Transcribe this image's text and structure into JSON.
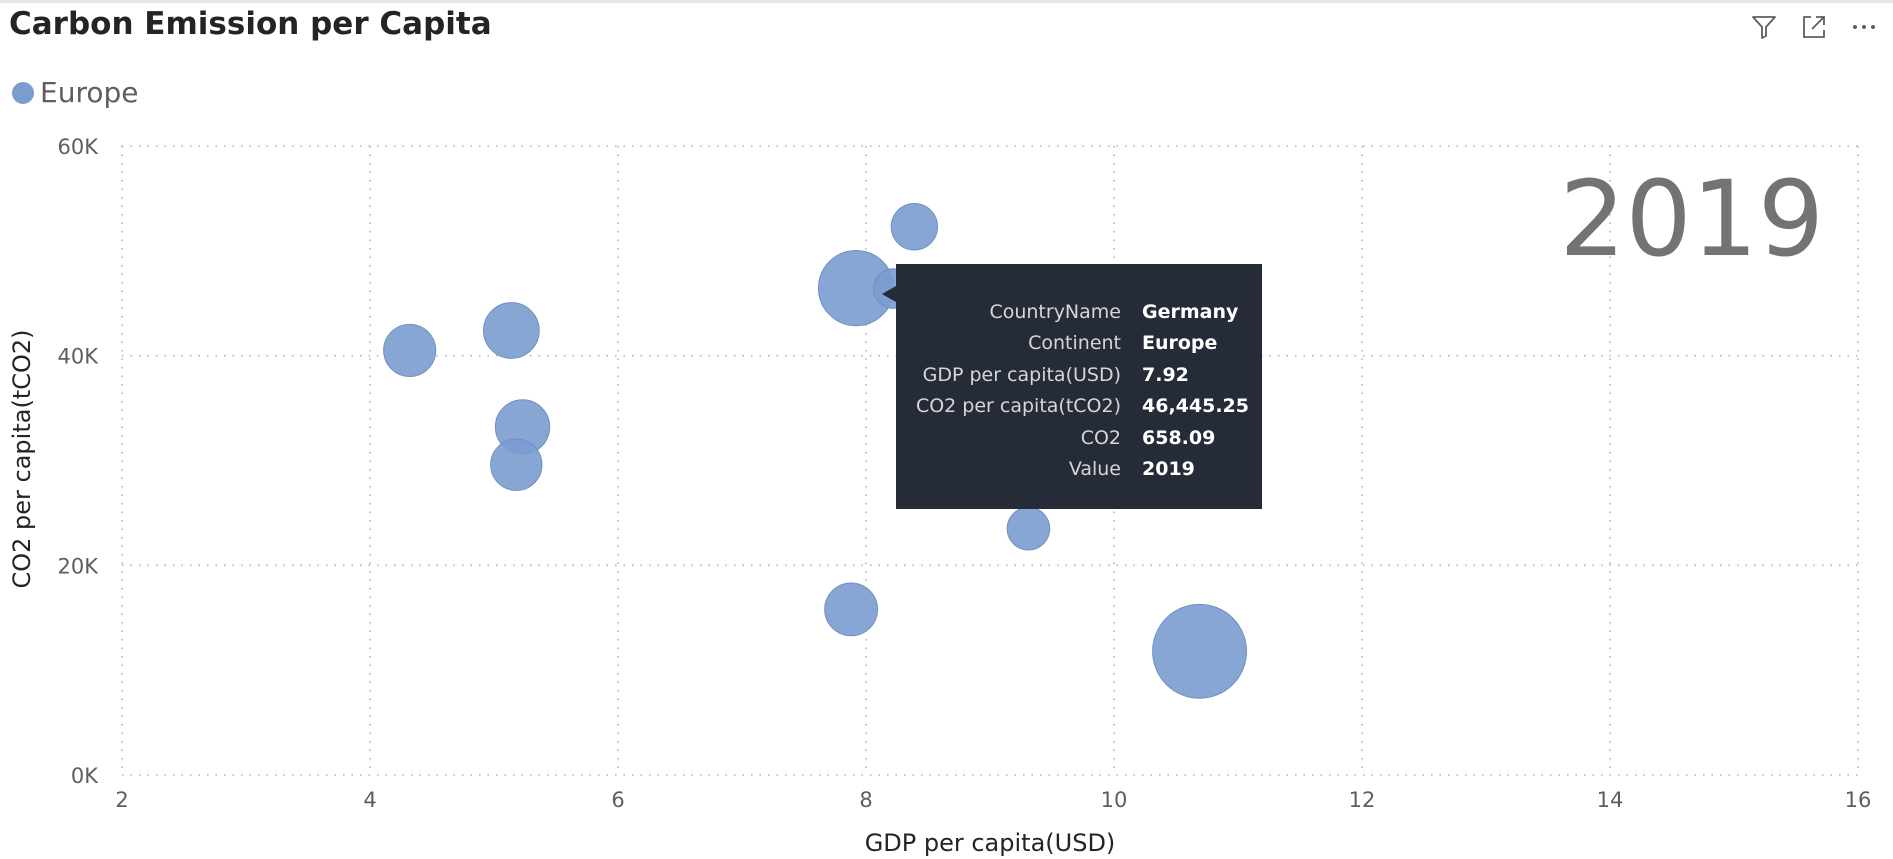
{
  "visual": {
    "title": "Carbon Emission per Capita",
    "icons": [
      "filter-icon",
      "focus-mode-icon",
      "more-options-icon"
    ]
  },
  "legend": {
    "label": "Europe",
    "color": "#7b9ccf"
  },
  "tooltip": {
    "rows": [
      {
        "key": "CountryName",
        "value": "Germany"
      },
      {
        "key": "Continent",
        "value": "Europe"
      },
      {
        "key": "GDP per capita(USD)",
        "value": "7.92"
      },
      {
        "key": "CO2 per capita(tCO2)",
        "value": "46,445.25"
      },
      {
        "key": "CO2",
        "value": "658.09"
      },
      {
        "key": "Value",
        "value": "2019"
      }
    ]
  },
  "chart_data": {
    "type": "scatter",
    "xlabel": "GDP per capita(USD)",
    "ylabel": "CO2 per capita(tCO2)",
    "xlim": [
      2,
      16
    ],
    "ylim": [
      0,
      60000
    ],
    "x_ticks": [
      2,
      4,
      6,
      8,
      10,
      12,
      14,
      16
    ],
    "y_ticks": [
      0,
      20000,
      40000,
      60000
    ],
    "y_tick_labels": [
      "0K",
      "20K",
      "40K",
      "60K"
    ],
    "grid": true,
    "play_axis_value": "2019",
    "series": [
      {
        "name": "Europe",
        "color": "#7b9ccf",
        "points": [
          {
            "x": 4.32,
            "y": 40500,
            "size": 2.7
          },
          {
            "x": 5.14,
            "y": 42400,
            "size": 3.2
          },
          {
            "x": 5.23,
            "y": 33200,
            "size": 3.0
          },
          {
            "x": 5.18,
            "y": 29600,
            "size": 2.6
          },
          {
            "x": 7.92,
            "y": 46445.25,
            "size": 6.6
          },
          {
            "x": 8.22,
            "y": 46400,
            "size": 1.3
          },
          {
            "x": 8.39,
            "y": 52300,
            "size": 2.0
          },
          {
            "x": 9.31,
            "y": 23500,
            "size": 1.6
          },
          {
            "x": 7.88,
            "y": 15800,
            "size": 2.8
          },
          {
            "x": 10.69,
            "y": 11800,
            "size": 11.0
          }
        ]
      }
    ]
  }
}
